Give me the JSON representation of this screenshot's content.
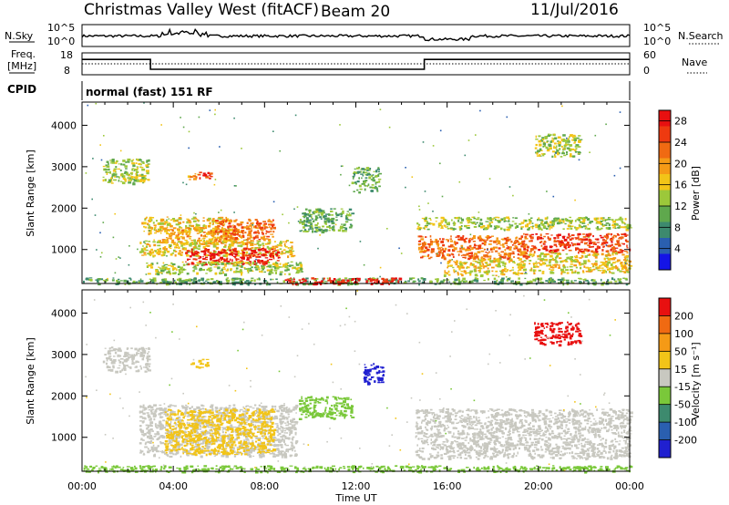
{
  "header": {
    "station": "Christmas Valley West (fitACF)",
    "beam": "Beam 20",
    "date": "11/Jul/2016"
  },
  "status_panel": {
    "nsky_label": "N.Sky",
    "nsky_ticks": [
      "10^5",
      "10^0"
    ],
    "nsearch_label": "N.Search",
    "freq_label_1": "Freq.",
    "freq_label_2": "[MHz]",
    "freq_ticks": [
      "18",
      "8"
    ],
    "nave_label": "Nave",
    "nave_ticks": [
      "60",
      "0"
    ],
    "cpid_label": "CPID",
    "cpid_text": "normal (fast) 151 RF",
    "freq_steps": [
      {
        "start_h": 0,
        "end_h": 3,
        "value": 15.0
      },
      {
        "start_h": 3,
        "end_h": 15,
        "value": 10.5
      },
      {
        "start_h": 15,
        "end_h": 24,
        "value": 15.0
      }
    ]
  },
  "chart_data": [
    {
      "type": "heatmap",
      "name": "power",
      "xlabel": "Time UT",
      "ylabel": "Slant Range [km]",
      "x_ticks": [
        "00:00",
        "04:00",
        "08:00",
        "12:00",
        "16:00",
        "20:00",
        "00:00"
      ],
      "xlim_hours": [
        0,
        24
      ],
      "y_ticks": [
        "1000",
        "2000",
        "3000",
        "4000"
      ],
      "y_tick_values": [
        1000,
        2000,
        3000,
        4000
      ],
      "ylim_km": [
        180,
        4560
      ],
      "colorbar_label": "Power [dB]",
      "colorbar_ticks": [
        "4",
        "8",
        "12",
        "16",
        "20",
        "24",
        "28"
      ],
      "colorbar_range": [
        0,
        30
      ],
      "colors": [
        "#1414e6",
        "#2a5fb0",
        "#3d8a6e",
        "#5fa84d",
        "#9cc83a",
        "#f2c418",
        "#f59a16",
        "#f06a12",
        "#ee3a10",
        "#e81010"
      ],
      "echo_regions": [
        {
          "t0": 0.9,
          "t1": 2.9,
          "r0": 2600,
          "r1": 3200,
          "level": 13
        },
        {
          "t0": 4.6,
          "t1": 5.1,
          "r0": 2700,
          "r1": 2850,
          "level": 18
        },
        {
          "t0": 5.0,
          "t1": 5.6,
          "r0": 2700,
          "r1": 2900,
          "level": 24
        },
        {
          "t0": 2.6,
          "t1": 6.4,
          "r0": 1400,
          "r1": 1800,
          "level": 16
        },
        {
          "t0": 3.5,
          "t1": 7.4,
          "r0": 1150,
          "r1": 1550,
          "level": 18
        },
        {
          "t0": 5.8,
          "t1": 8.4,
          "r0": 1250,
          "r1": 1750,
          "level": 22
        },
        {
          "t0": 2.5,
          "t1": 9.2,
          "r0": 850,
          "r1": 1250,
          "level": 16
        },
        {
          "t0": 4.5,
          "t1": 8.6,
          "r0": 650,
          "r1": 1050,
          "level": 27
        },
        {
          "t0": 2.8,
          "t1": 9.6,
          "r0": 420,
          "r1": 720,
          "level": 12
        },
        {
          "t0": 0.0,
          "t1": 24.0,
          "r0": 180,
          "r1": 330,
          "level": 10
        },
        {
          "t0": 8.8,
          "t1": 13.9,
          "r0": 180,
          "r1": 330,
          "level": 26
        },
        {
          "t0": 11.8,
          "t1": 13.0,
          "r0": 2400,
          "r1": 3000,
          "level": 10
        },
        {
          "t0": 9.5,
          "t1": 11.8,
          "r0": 1450,
          "r1": 2000,
          "level": 10
        },
        {
          "t0": 14.6,
          "t1": 24.0,
          "r0": 1500,
          "r1": 1800,
          "level": 11
        },
        {
          "t0": 14.7,
          "t1": 19.5,
          "r0": 800,
          "r1": 1350,
          "level": 22
        },
        {
          "t0": 19.3,
          "t1": 24.0,
          "r0": 950,
          "r1": 1400,
          "level": 23
        },
        {
          "t0": 15.8,
          "t1": 19.4,
          "r0": 380,
          "r1": 800,
          "level": 16
        },
        {
          "t0": 19.5,
          "t1": 24.0,
          "r0": 450,
          "r1": 950,
          "level": 14
        },
        {
          "t0": 19.8,
          "t1": 21.8,
          "r0": 3250,
          "r1": 3800,
          "level": 12
        }
      ]
    },
    {
      "type": "heatmap",
      "name": "velocity",
      "xlabel": "Time UT",
      "ylabel": "Slant Range [km]",
      "x_ticks": [
        "00:00",
        "04:00",
        "08:00",
        "12:00",
        "16:00",
        "20:00",
        "00:00"
      ],
      "xlim_hours": [
        0,
        24
      ],
      "y_ticks": [
        "1000",
        "2000",
        "3000",
        "4000"
      ],
      "y_tick_values": [
        1000,
        2000,
        3000,
        4000
      ],
      "ylim_km": [
        180,
        4560
      ],
      "colorbar_label": "Velocity [m s⁻¹]",
      "colorbar_ticks": [
        "200",
        "100",
        "50",
        "15",
        "-15",
        "-50",
        "-100",
        "-200"
      ],
      "colors": [
        "#2020d0",
        "#2a5fb0",
        "#3d8a6e",
        "#7ac83a",
        "#c8c8c0",
        "#f2c418",
        "#f59a16",
        "#f06a12",
        "#e81010"
      ],
      "echo_regions": [
        {
          "t0": 0.9,
          "t1": 2.9,
          "r0": 2600,
          "r1": 3200,
          "level": 4
        },
        {
          "t0": 4.7,
          "t1": 5.5,
          "r0": 2700,
          "r1": 2900,
          "level": 5
        },
        {
          "t0": 2.5,
          "t1": 9.4,
          "r0": 550,
          "r1": 1800,
          "level": 4
        },
        {
          "t0": 3.6,
          "t1": 8.4,
          "r0": 600,
          "r1": 1700,
          "level": 5
        },
        {
          "t0": 0.0,
          "t1": 24.0,
          "r0": 180,
          "r1": 330,
          "level": 3
        },
        {
          "t0": 9.5,
          "t1": 11.8,
          "r0": 1450,
          "r1": 2000,
          "level": 3
        },
        {
          "t0": 12.3,
          "t1": 13.2,
          "r0": 2300,
          "r1": 2800,
          "level": 0
        },
        {
          "t0": 14.6,
          "t1": 24.0,
          "r0": 500,
          "r1": 1700,
          "level": 4
        },
        {
          "t0": 19.8,
          "t1": 21.8,
          "r0": 3250,
          "r1": 3800,
          "level": 8
        }
      ]
    }
  ]
}
